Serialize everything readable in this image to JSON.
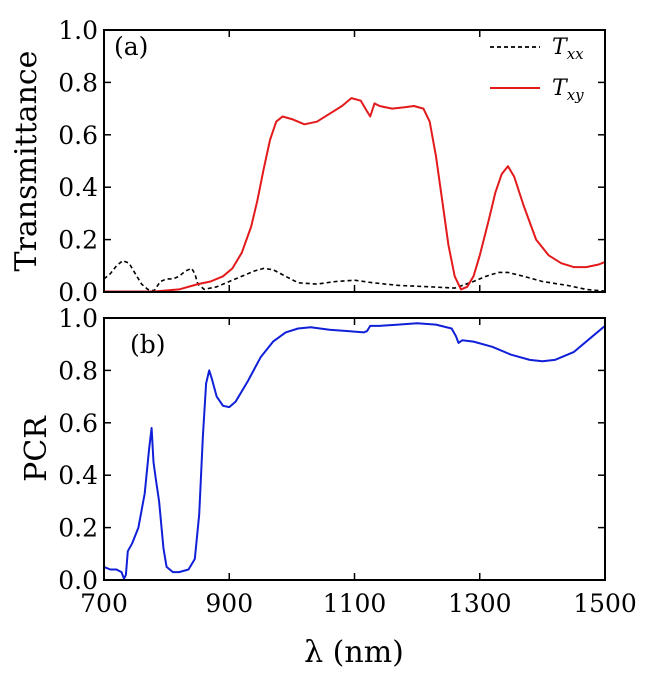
{
  "chart_data": [
    {
      "type": "line",
      "panel_label": "(a)",
      "ylabel": "Transmittance",
      "xlim": [
        700,
        1500
      ],
      "ylim": [
        0,
        1.0
      ],
      "x_ticks": [
        700,
        900,
        1100,
        1300,
        1500
      ],
      "y_ticks": [
        "0.0",
        "0.2",
        "0.4",
        "0.6",
        "0.8",
        "1.0"
      ],
      "legend_placement": "top-right",
      "series": [
        {
          "name": "T",
          "name_sub": "xx",
          "color": "#000000",
          "dash": "dashed",
          "points": [
            [
              700,
              0.05
            ],
            [
              710,
              0.07
            ],
            [
              720,
              0.1
            ],
            [
              730,
              0.12
            ],
            [
              740,
              0.11
            ],
            [
              750,
              0.07
            ],
            [
              760,
              0.03
            ],
            [
              770,
              0.01
            ],
            [
              780,
              0.005
            ],
            [
              790,
              0.04
            ],
            [
              800,
              0.05
            ],
            [
              810,
              0.05
            ],
            [
              820,
              0.06
            ],
            [
              830,
              0.08
            ],
            [
              840,
              0.09
            ],
            [
              845,
              0.07
            ],
            [
              850,
              0.03
            ],
            [
              860,
              0.01
            ],
            [
              880,
              0.02
            ],
            [
              900,
              0.04
            ],
            [
              920,
              0.06
            ],
            [
              940,
              0.08
            ],
            [
              955,
              0.09
            ],
            [
              970,
              0.085
            ],
            [
              990,
              0.06
            ],
            [
              1010,
              0.035
            ],
            [
              1040,
              0.03
            ],
            [
              1070,
              0.04
            ],
            [
              1100,
              0.045
            ],
            [
              1130,
              0.035
            ],
            [
              1170,
              0.025
            ],
            [
              1220,
              0.02
            ],
            [
              1260,
              0.015
            ],
            [
              1290,
              0.04
            ],
            [
              1310,
              0.06
            ],
            [
              1330,
              0.075
            ],
            [
              1345,
              0.075
            ],
            [
              1370,
              0.06
            ],
            [
              1400,
              0.04
            ],
            [
              1440,
              0.025
            ],
            [
              1470,
              0.01
            ],
            [
              1500,
              0.003
            ]
          ]
        },
        {
          "name": "T",
          "name_sub": "xy",
          "color": "#e31a1c",
          "dash": "solid",
          "points": [
            [
              700,
              0.002
            ],
            [
              740,
              0.002
            ],
            [
              780,
              0.002
            ],
            [
              820,
              0.01
            ],
            [
              850,
              0.03
            ],
            [
              870,
              0.04
            ],
            [
              890,
              0.06
            ],
            [
              905,
              0.09
            ],
            [
              920,
              0.15
            ],
            [
              935,
              0.25
            ],
            [
              945,
              0.35
            ],
            [
              955,
              0.47
            ],
            [
              965,
              0.58
            ],
            [
              975,
              0.65
            ],
            [
              985,
              0.67
            ],
            [
              1000,
              0.66
            ],
            [
              1020,
              0.64
            ],
            [
              1040,
              0.65
            ],
            [
              1060,
              0.68
            ],
            [
              1080,
              0.71
            ],
            [
              1095,
              0.74
            ],
            [
              1110,
              0.73
            ],
            [
              1120,
              0.69
            ],
            [
              1125,
              0.67
            ],
            [
              1132,
              0.72
            ],
            [
              1140,
              0.71
            ],
            [
              1160,
              0.7
            ],
            [
              1180,
              0.705
            ],
            [
              1195,
              0.71
            ],
            [
              1210,
              0.7
            ],
            [
              1220,
              0.65
            ],
            [
              1230,
              0.52
            ],
            [
              1240,
              0.35
            ],
            [
              1250,
              0.18
            ],
            [
              1260,
              0.06
            ],
            [
              1270,
              0.01
            ],
            [
              1280,
              0.02
            ],
            [
              1290,
              0.06
            ],
            [
              1300,
              0.14
            ],
            [
              1315,
              0.28
            ],
            [
              1325,
              0.38
            ],
            [
              1335,
              0.45
            ],
            [
              1345,
              0.48
            ],
            [
              1355,
              0.44
            ],
            [
              1370,
              0.33
            ],
            [
              1390,
              0.2
            ],
            [
              1410,
              0.14
            ],
            [
              1430,
              0.11
            ],
            [
              1450,
              0.095
            ],
            [
              1470,
              0.095
            ],
            [
              1490,
              0.105
            ],
            [
              1500,
              0.115
            ]
          ]
        }
      ]
    },
    {
      "type": "line",
      "panel_label": "(b)",
      "ylabel": "PCR",
      "xlabel": "λ (nm)",
      "xlim": [
        700,
        1500
      ],
      "ylim": [
        0,
        1.0
      ],
      "x_ticks": [
        "700",
        "900",
        "1100",
        "1300",
        "1500"
      ],
      "y_ticks": [
        "0.0",
        "0.2",
        "0.4",
        "0.6",
        "0.8",
        "1.0"
      ],
      "series": [
        {
          "color": "#1020d8",
          "dash": "solid",
          "points": [
            [
              700,
              0.05
            ],
            [
              710,
              0.04
            ],
            [
              720,
              0.04
            ],
            [
              728,
              0.03
            ],
            [
              732,
              0.005
            ],
            [
              735,
              0.02
            ],
            [
              738,
              0.11
            ],
            [
              745,
              0.14
            ],
            [
              755,
              0.2
            ],
            [
              765,
              0.33
            ],
            [
              772,
              0.5
            ],
            [
              776,
              0.58
            ],
            [
              779,
              0.45
            ],
            [
              783,
              0.38
            ],
            [
              788,
              0.3
            ],
            [
              795,
              0.12
            ],
            [
              800,
              0.05
            ],
            [
              810,
              0.03
            ],
            [
              820,
              0.03
            ],
            [
              835,
              0.04
            ],
            [
              845,
              0.08
            ],
            [
              852,
              0.25
            ],
            [
              858,
              0.55
            ],
            [
              863,
              0.75
            ],
            [
              868,
              0.8
            ],
            [
              872,
              0.77
            ],
            [
              880,
              0.7
            ],
            [
              890,
              0.665
            ],
            [
              900,
              0.66
            ],
            [
              910,
              0.68
            ],
            [
              930,
              0.76
            ],
            [
              950,
              0.85
            ],
            [
              970,
              0.91
            ],
            [
              990,
              0.945
            ],
            [
              1010,
              0.96
            ],
            [
              1030,
              0.965
            ],
            [
              1060,
              0.955
            ],
            [
              1090,
              0.95
            ],
            [
              1115,
              0.945
            ],
            [
              1120,
              0.95
            ],
            [
              1125,
              0.97
            ],
            [
              1140,
              0.97
            ],
            [
              1170,
              0.975
            ],
            [
              1200,
              0.98
            ],
            [
              1230,
              0.975
            ],
            [
              1255,
              0.96
            ],
            [
              1262,
              0.93
            ],
            [
              1266,
              0.905
            ],
            [
              1272,
              0.915
            ],
            [
              1290,
              0.91
            ],
            [
              1320,
              0.89
            ],
            [
              1350,
              0.86
            ],
            [
              1380,
              0.84
            ],
            [
              1400,
              0.835
            ],
            [
              1420,
              0.84
            ],
            [
              1450,
              0.87
            ],
            [
              1480,
              0.93
            ],
            [
              1500,
              0.97
            ]
          ]
        }
      ]
    }
  ]
}
